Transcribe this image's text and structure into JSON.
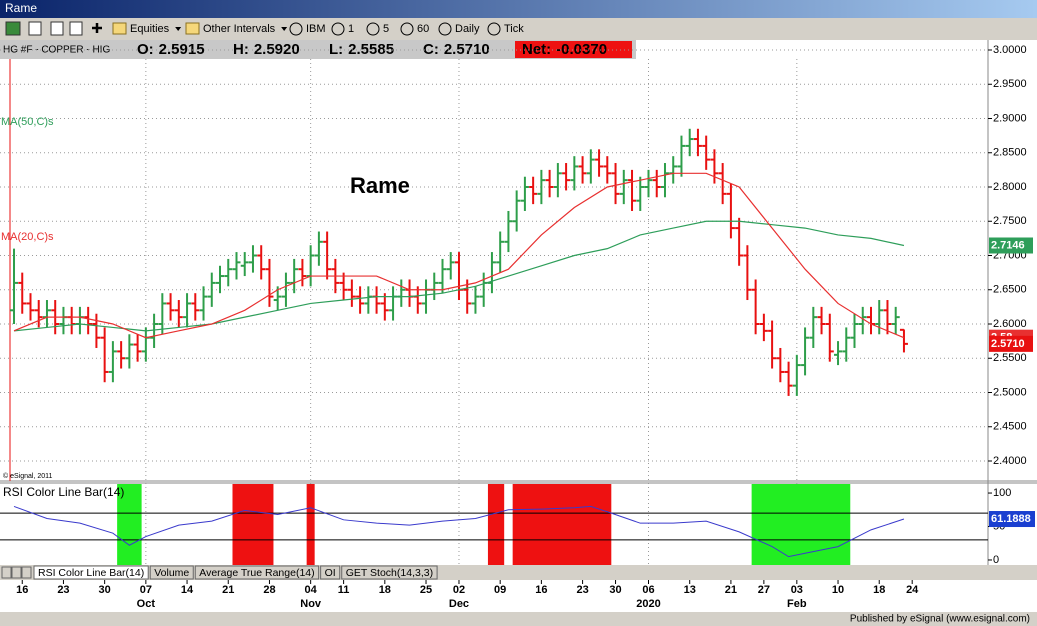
{
  "window": {
    "title": "Rame"
  },
  "toolbar": [
    "Equities",
    "Other Intervals",
    "IBM",
    "1",
    "5",
    "60",
    "Daily",
    "Tick"
  ],
  "header": {
    "symbol": "HG #F - COPPER - HIG",
    "quote": [
      {
        "label": "O:",
        "value": "2.5915"
      },
      {
        "label": "H:",
        "value": "2.5920"
      },
      {
        "label": "L:",
        "value": "2.5585"
      },
      {
        "label": "C:",
        "value": "2.5710"
      }
    ],
    "net": {
      "label": "Net:",
      "value": "-0.0370"
    }
  },
  "tabs": [
    "RSI Color Line Bar(14)",
    "Volume",
    "Average True Range(14)",
    "OI",
    "GET Stoch(14,3,3)"
  ],
  "footer": "Published by eSignal (www.esignal.com)",
  "chart_data": [
    {
      "type": "ohlc",
      "annotation": "Rame",
      "credit": "© eSignal, 2011",
      "up_color": "#2e9e4a",
      "down_color": "#e81010",
      "grid": true,
      "xlim": [
        -1.7,
        118.2
      ],
      "ylim": [
        2.3708,
        3.0146
      ],
      "yticks": [
        {
          "value": 2.4,
          "label": "2.4000"
        },
        {
          "value": 2.45,
          "label": "2.4500"
        },
        {
          "value": 2.5,
          "label": "2.5000"
        },
        {
          "value": 2.55,
          "label": "2.5500"
        },
        {
          "value": 2.6,
          "label": "2.6000"
        },
        {
          "value": 2.65,
          "label": "2.6500"
        },
        {
          "value": 2.7,
          "label": "2.7000"
        },
        {
          "value": 2.75,
          "label": "2.7500"
        },
        {
          "value": 2.8,
          "label": "2.8000"
        },
        {
          "value": 2.85,
          "label": "2.8500"
        },
        {
          "value": 2.9,
          "label": "2.9000"
        },
        {
          "value": 2.95,
          "label": "2.9500"
        },
        {
          "value": 3.0,
          "label": "3.0000"
        }
      ],
      "xticks": [
        {
          "value": 1,
          "label": "16"
        },
        {
          "value": 6,
          "label": "23"
        },
        {
          "value": 11,
          "label": "30"
        },
        {
          "value": 16,
          "label": "07"
        },
        {
          "value": 21,
          "label": "14"
        },
        {
          "value": 26,
          "label": "21"
        },
        {
          "value": 31,
          "label": "28"
        },
        {
          "value": 36,
          "label": "04"
        },
        {
          "value": 40,
          "label": "11"
        },
        {
          "value": 45,
          "label": "18"
        },
        {
          "value": 50,
          "label": "25"
        },
        {
          "value": 54,
          "label": "02"
        },
        {
          "value": 59,
          "label": "09"
        },
        {
          "value": 64,
          "label": "16"
        },
        {
          "value": 69,
          "label": "23"
        },
        {
          "value": 73,
          "label": "30"
        },
        {
          "value": 77,
          "label": "06"
        },
        {
          "value": 82,
          "label": "13"
        },
        {
          "value": 87,
          "label": "21"
        },
        {
          "value": 91,
          "label": "27"
        },
        {
          "value": 95,
          "label": "03"
        },
        {
          "value": 100,
          "label": "10"
        },
        {
          "value": 105,
          "label": "18"
        },
        {
          "value": 109,
          "label": "24"
        }
      ],
      "month_ticks": [
        {
          "value": 16,
          "label": "Oct"
        },
        {
          "value": 36,
          "label": "Nov"
        },
        {
          "value": 54,
          "label": "Dec"
        },
        {
          "value": 77,
          "label": "2020"
        },
        {
          "value": 95,
          "label": "Feb"
        }
      ],
      "ohlc": {
        "open": [
          2.62,
          2.66,
          2.63,
          2.62,
          2.61,
          2.62,
          2.6,
          2.61,
          2.6,
          2.61,
          2.6,
          2.58,
          2.53,
          2.56,
          2.55,
          2.57,
          2.56,
          2.58,
          2.6,
          2.63,
          2.62,
          2.61,
          2.63,
          2.62,
          2.64,
          2.66,
          2.67,
          2.68,
          2.685,
          2.69,
          2.7,
          2.68,
          2.635,
          2.64,
          2.66,
          2.68,
          2.67,
          2.7,
          2.72,
          2.68,
          2.66,
          2.65,
          2.64,
          2.63,
          2.64,
          2.63,
          2.62,
          2.64,
          2.65,
          2.64,
          2.63,
          2.65,
          2.66,
          2.68,
          2.69,
          2.65,
          2.63,
          2.64,
          2.66,
          2.69,
          2.72,
          2.75,
          2.78,
          2.8,
          2.79,
          2.81,
          2.8,
          2.82,
          2.81,
          2.83,
          2.82,
          2.84,
          2.83,
          2.82,
          2.79,
          2.81,
          2.78,
          2.8,
          2.81,
          2.8,
          2.82,
          2.83,
          2.86,
          2.87,
          2.86,
          2.84,
          2.82,
          2.79,
          2.74,
          2.7,
          2.65,
          2.6,
          2.59,
          2.55,
          2.53,
          2.51,
          2.54,
          2.58,
          2.61,
          2.6,
          2.555,
          2.56,
          2.58,
          2.6,
          2.61,
          2.6,
          2.62,
          2.6,
          2.5915
        ],
        "high": [
          2.71,
          2.675,
          2.645,
          2.635,
          2.635,
          2.635,
          2.625,
          2.625,
          2.625,
          2.625,
          2.615,
          2.595,
          2.575,
          2.575,
          2.585,
          2.585,
          2.595,
          2.615,
          2.645,
          2.645,
          2.635,
          2.645,
          2.645,
          2.655,
          2.675,
          2.685,
          2.695,
          2.705,
          2.705,
          2.715,
          2.715,
          2.695,
          2.655,
          2.675,
          2.695,
          2.695,
          2.715,
          2.735,
          2.735,
          2.695,
          2.675,
          2.665,
          2.655,
          2.655,
          2.655,
          2.645,
          2.655,
          2.665,
          2.665,
          2.655,
          2.665,
          2.675,
          2.695,
          2.705,
          2.705,
          2.665,
          2.655,
          2.675,
          2.705,
          2.735,
          2.765,
          2.795,
          2.815,
          2.815,
          2.825,
          2.825,
          2.835,
          2.835,
          2.845,
          2.845,
          2.855,
          2.855,
          2.845,
          2.835,
          2.825,
          2.825,
          2.815,
          2.825,
          2.825,
          2.835,
          2.845,
          2.875,
          2.885,
          2.885,
          2.875,
          2.855,
          2.835,
          2.805,
          2.755,
          2.715,
          2.665,
          2.615,
          2.605,
          2.565,
          2.545,
          2.555,
          2.595,
          2.625,
          2.625,
          2.615,
          2.575,
          2.595,
          2.615,
          2.625,
          2.625,
          2.635,
          2.635,
          2.625,
          2.592
        ],
        "low": [
          2.6,
          2.615,
          2.605,
          2.595,
          2.595,
          2.585,
          2.585,
          2.585,
          2.585,
          2.585,
          2.565,
          2.515,
          2.515,
          2.535,
          2.535,
          2.545,
          2.545,
          2.565,
          2.585,
          2.605,
          2.595,
          2.595,
          2.605,
          2.605,
          2.625,
          2.645,
          2.655,
          2.665,
          2.67,
          2.675,
          2.665,
          2.625,
          2.62,
          2.625,
          2.645,
          2.655,
          2.655,
          2.685,
          2.665,
          2.645,
          2.635,
          2.625,
          2.615,
          2.615,
          2.615,
          2.605,
          2.605,
          2.625,
          2.625,
          2.615,
          2.615,
          2.635,
          2.645,
          2.665,
          2.635,
          2.615,
          2.615,
          2.625,
          2.645,
          2.675,
          2.705,
          2.735,
          2.765,
          2.775,
          2.775,
          2.785,
          2.785,
          2.795,
          2.795,
          2.805,
          2.805,
          2.815,
          2.805,
          2.775,
          2.775,
          2.765,
          2.765,
          2.785,
          2.785,
          2.785,
          2.805,
          2.815,
          2.845,
          2.845,
          2.825,
          2.805,
          2.775,
          2.725,
          2.685,
          2.635,
          2.585,
          2.575,
          2.535,
          2.515,
          2.495,
          2.495,
          2.525,
          2.565,
          2.585,
          2.545,
          2.54,
          2.545,
          2.565,
          2.585,
          2.585,
          2.585,
          2.585,
          2.585,
          2.5585
        ],
        "close": [
          2.66,
          2.63,
          2.62,
          2.61,
          2.62,
          2.6,
          2.61,
          2.6,
          2.61,
          2.6,
          2.58,
          2.53,
          2.56,
          2.55,
          2.57,
          2.56,
          2.58,
          2.6,
          2.63,
          2.62,
          2.61,
          2.63,
          2.62,
          2.64,
          2.66,
          2.67,
          2.68,
          2.69,
          2.69,
          2.7,
          2.68,
          2.64,
          2.64,
          2.66,
          2.68,
          2.67,
          2.7,
          2.72,
          2.68,
          2.66,
          2.65,
          2.64,
          2.63,
          2.64,
          2.63,
          2.62,
          2.64,
          2.65,
          2.64,
          2.63,
          2.65,
          2.66,
          2.68,
          2.69,
          2.65,
          2.63,
          2.64,
          2.66,
          2.69,
          2.72,
          2.75,
          2.78,
          2.8,
          2.79,
          2.81,
          2.8,
          2.82,
          2.81,
          2.83,
          2.82,
          2.84,
          2.83,
          2.82,
          2.79,
          2.81,
          2.78,
          2.8,
          2.81,
          2.8,
          2.82,
          2.83,
          2.86,
          2.87,
          2.86,
          2.84,
          2.82,
          2.79,
          2.74,
          2.7,
          2.65,
          2.6,
          2.59,
          2.55,
          2.53,
          2.51,
          2.54,
          2.58,
          2.61,
          2.6,
          2.56,
          2.56,
          2.58,
          2.6,
          2.61,
          2.6,
          2.62,
          2.6,
          2.61,
          2.571
        ]
      },
      "lines": [
        {
          "name": "MA(50,C)s",
          "color": "#2e9e5a",
          "x": [
            0,
            4,
            8,
            12,
            16,
            20,
            24,
            28,
            32,
            36,
            40,
            44,
            48,
            52,
            56,
            60,
            64,
            68,
            72,
            76,
            80,
            84,
            88,
            92,
            96,
            100,
            104,
            108
          ],
          "values": [
            2.59,
            2.595,
            2.6,
            2.595,
            2.59,
            2.595,
            2.6,
            2.61,
            2.62,
            2.63,
            2.635,
            2.64,
            2.64,
            2.645,
            2.655,
            2.67,
            2.685,
            2.7,
            2.71,
            2.73,
            2.74,
            2.75,
            2.75,
            2.745,
            2.74,
            2.73,
            2.725,
            2.7146
          ]
        },
        {
          "name": "MA(20,C)s",
          "color": "#e83030",
          "x": [
            0,
            4,
            8,
            12,
            16,
            20,
            24,
            28,
            32,
            36,
            40,
            44,
            48,
            52,
            56,
            60,
            64,
            68,
            72,
            76,
            80,
            84,
            88,
            92,
            96,
            100,
            104,
            108
          ],
          "values": [
            2.59,
            2.61,
            2.61,
            2.6,
            2.58,
            2.59,
            2.6,
            2.62,
            2.65,
            2.67,
            2.67,
            2.67,
            2.65,
            2.65,
            2.66,
            2.68,
            2.73,
            2.77,
            2.8,
            2.81,
            2.82,
            2.82,
            2.8,
            2.74,
            2.68,
            2.63,
            2.6,
            2.58
          ]
        }
      ]
    },
    {
      "type": "line",
      "title": "RSI Color Line Bar(14)",
      "color": "#3a3acc",
      "xlim": [
        -1.7,
        118.2
      ],
      "ylim": [
        -7.5,
        115
      ],
      "yticks": [
        0,
        50,
        100
      ],
      "levels": [
        70,
        30
      ],
      "zones": [
        {
          "start": 13,
          "end": 15,
          "color": "#22ee22"
        },
        {
          "start": 27,
          "end": 31,
          "color": "#ee1111"
        },
        {
          "start": 36,
          "end": 36,
          "color": "#ee1111"
        },
        {
          "start": 58,
          "end": 59,
          "color": "#ee1111"
        },
        {
          "start": 61,
          "end": 72,
          "color": "#ee1111"
        },
        {
          "start": 90,
          "end": 101,
          "color": "#22ee22"
        }
      ],
      "x": [
        0,
        4,
        8,
        12,
        14,
        16,
        20,
        24,
        28,
        32,
        36,
        40,
        44,
        48,
        52,
        56,
        60,
        64,
        68,
        70,
        72,
        76,
        80,
        84,
        88,
        92,
        94,
        96,
        100,
        104,
        108
      ],
      "values": [
        80,
        62,
        55,
        40,
        22,
        35,
        52,
        58,
        74,
        68,
        78,
        60,
        55,
        52,
        58,
        62,
        75,
        76,
        78,
        80,
        72,
        55,
        55,
        58,
        42,
        20,
        5,
        10,
        20,
        45,
        61.1888
      ]
    }
  ]
}
